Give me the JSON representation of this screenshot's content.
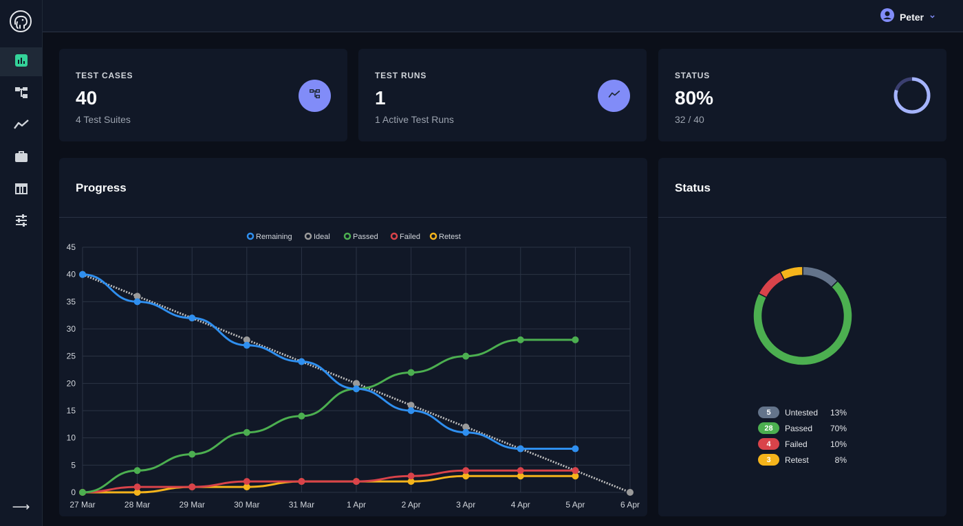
{
  "user": {
    "name": "Peter"
  },
  "nav": {
    "items": [
      {
        "icon": "bar-chart-icon",
        "active": true
      },
      {
        "icon": "hierarchy-icon",
        "active": false
      },
      {
        "icon": "trend-line-icon",
        "active": false
      },
      {
        "icon": "briefcase-icon",
        "active": false
      },
      {
        "icon": "table-icon",
        "active": false
      },
      {
        "icon": "sliders-icon",
        "active": false
      }
    ],
    "collapse_arrow": "⟶"
  },
  "stats": {
    "test_cases": {
      "label": "TEST CASES",
      "value": "40",
      "sub": "4 Test Suites"
    },
    "test_runs": {
      "label": "TEST RUNS",
      "value": "1",
      "sub": "1 Active Test Runs"
    },
    "status": {
      "label": "STATUS",
      "value": "80%",
      "sub": "32 / 40",
      "progress": 0.8
    }
  },
  "progress_panel": {
    "title": "Progress"
  },
  "status_panel": {
    "title": "Status"
  },
  "colors": {
    "remaining": "#2f8fef",
    "ideal": "#9a9a9a",
    "passed": "#4caf50",
    "failed": "#d9434a",
    "retest": "#f5b41b",
    "untested": "#64748b",
    "accent": "#818cf8"
  },
  "chart_data": [
    {
      "type": "line",
      "categories": [
        "27 Mar",
        "28 Mar",
        "29 Mar",
        "30 Mar",
        "31 Mar",
        "1 Apr",
        "2 Apr",
        "3 Apr",
        "4 Apr",
        "5 Apr",
        "6 Apr"
      ],
      "ylim": [
        0,
        45
      ],
      "yticks": [
        0,
        5,
        10,
        15,
        20,
        25,
        30,
        35,
        40,
        45
      ],
      "grid": true,
      "legend_position": "top",
      "series": [
        {
          "name": "Remaining",
          "color": "#2f8fef",
          "values": [
            40,
            35,
            32,
            27,
            24,
            19,
            15,
            11,
            8,
            8,
            null
          ]
        },
        {
          "name": "Ideal",
          "color": "#9a9a9a",
          "dotted": true,
          "values": [
            40,
            36,
            32,
            28,
            24,
            20,
            16,
            12,
            8,
            4,
            0
          ]
        },
        {
          "name": "Passed",
          "color": "#4caf50",
          "values": [
            0,
            4,
            7,
            11,
            14,
            19,
            22,
            25,
            28,
            28,
            null
          ]
        },
        {
          "name": "Failed",
          "color": "#d9434a",
          "values": [
            0,
            1,
            1,
            2,
            2,
            2,
            3,
            4,
            4,
            4,
            null
          ]
        },
        {
          "name": "Retest",
          "color": "#f5b41b",
          "values": [
            0,
            0,
            1,
            1,
            2,
            2,
            2,
            3,
            3,
            3,
            null
          ]
        }
      ]
    },
    {
      "type": "pie",
      "donut": true,
      "slices": [
        {
          "name": "Untested",
          "count": 5,
          "percent": "13%",
          "color": "#64748b"
        },
        {
          "name": "Passed",
          "count": 28,
          "percent": "70%",
          "color": "#4caf50"
        },
        {
          "name": "Failed",
          "count": 4,
          "percent": "10%",
          "color": "#d9434a"
        },
        {
          "name": "Retest",
          "count": 3,
          "percent": "8%",
          "color": "#f5b41b"
        }
      ]
    }
  ]
}
